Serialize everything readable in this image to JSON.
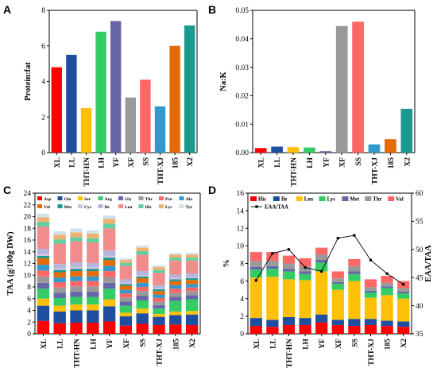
{
  "colors": {
    "A": [
      "#ff0000",
      "#1f4e9e",
      "#ffc107",
      "#33cc66",
      "#6666a8",
      "#999999",
      "#ff6666",
      "#3399cc",
      "#e36c09",
      "#1a9a8e"
    ],
    "B": [
      "#ff0000",
      "#1f4e9e",
      "#ffc107",
      "#33cc66",
      "#6666a8",
      "#999999",
      "#ff6666",
      "#3399cc",
      "#e36c09",
      "#1a9a8e"
    ],
    "amino": [
      "#ff0000",
      "#1f4e9e",
      "#ffc107",
      "#33cc66",
      "#6666a8",
      "#999999",
      "#ff6666",
      "#3399cc",
      "#e36c09",
      "#1a9a8e",
      "#d4c3e0",
      "#b4b4dc",
      "#f08c8c",
      "#5fcfa0",
      "#f0b070",
      "#cfe3ef"
    ],
    "D": [
      "#ff0000",
      "#1f4e9e",
      "#ffc107",
      "#33cc66",
      "#6666a8",
      "#999999",
      "#ff6666"
    ],
    "line": "#000000"
  },
  "chart_data": [
    {
      "panel": "A",
      "type": "bar",
      "categories": [
        "XL",
        "LL",
        "THT-HN",
        "LH",
        "YF",
        "XF",
        "SS",
        "THT-XJ",
        "185",
        "X2"
      ],
      "values": [
        4.8,
        5.5,
        2.5,
        6.8,
        7.4,
        3.1,
        4.1,
        2.6,
        6.0,
        7.15
      ],
      "ylabel": "Protein:fat",
      "ylim": [
        0,
        8
      ],
      "yticks": [
        "0",
        "2",
        "4",
        "6",
        "8"
      ]
    },
    {
      "panel": "B",
      "type": "bar",
      "categories": [
        "XL",
        "LL",
        "THT-HN",
        "LH",
        "YF",
        "XF",
        "SS",
        "THT-XJ",
        "185",
        "X2"
      ],
      "values": [
        0.0016,
        0.0021,
        0.0019,
        0.0018,
        0.0005,
        0.0445,
        0.046,
        0.0029,
        0.0047,
        0.0154
      ],
      "ylabel": "Na:K",
      "ylim": [
        0,
        0.05
      ],
      "yticks": [
        "0.00",
        "0.01",
        "0.02",
        "0.03",
        "0.04",
        "0.05"
      ]
    },
    {
      "panel": "C",
      "type": "stacked-bar",
      "categories": [
        "XL",
        "LL",
        "THT-HN",
        "LH",
        "YF",
        "XF",
        "SS",
        "THT-XJ",
        "185",
        "X2"
      ],
      "ylabel": "TAA (g/100g DW)",
      "ylim": [
        0,
        24
      ],
      "yticks": [
        "0",
        "2",
        "4",
        "6",
        "8",
        "10",
        "12",
        "14",
        "16",
        "18",
        "20",
        "22",
        "24"
      ],
      "series": [
        {
          "name": "Asp",
          "values": [
            2.2,
            1.8,
            1.9,
            1.9,
            2.1,
            1.4,
            1.7,
            1.5,
            1.6,
            1.5
          ]
        },
        {
          "name": "Glu",
          "values": [
            2.6,
            2.0,
            2.1,
            2.1,
            2.6,
            1.6,
            1.8,
            1.4,
            1.6,
            1.8
          ]
        },
        {
          "name": "Ser",
          "values": [
            1.2,
            1.0,
            1.0,
            1.0,
            1.2,
            0.6,
            0.8,
            0.5,
            0.6,
            0.6
          ]
        },
        {
          "name": "Arg",
          "values": [
            1.7,
            1.3,
            1.3,
            1.3,
            1.8,
            1.2,
            1.4,
            0.9,
            1.8,
            2.0
          ]
        },
        {
          "name": "Gly",
          "values": [
            1.0,
            0.9,
            0.9,
            0.9,
            1.0,
            0.7,
            0.8,
            0.6,
            0.7,
            0.7
          ]
        },
        {
          "name": "Thr",
          "values": [
            1.1,
            0.9,
            0.9,
            0.9,
            1.0,
            0.7,
            0.8,
            0.6,
            0.7,
            0.7
          ]
        },
        {
          "name": "Pro",
          "values": [
            1.0,
            0.9,
            0.9,
            0.9,
            1.0,
            0.7,
            0.7,
            0.6,
            0.7,
            0.6
          ]
        },
        {
          "name": "Ala",
          "values": [
            1.0,
            0.8,
            0.8,
            0.8,
            0.9,
            0.6,
            0.7,
            0.6,
            0.6,
            0.6
          ]
        },
        {
          "name": "Val",
          "values": [
            1.1,
            0.9,
            0.9,
            0.9,
            1.0,
            0.7,
            0.8,
            0.6,
            0.7,
            0.7
          ]
        },
        {
          "name": "Met",
          "values": [
            0.4,
            0.4,
            0.4,
            0.4,
            0.4,
            0.3,
            0.3,
            0.3,
            0.3,
            0.3
          ]
        },
        {
          "name": "Cys",
          "values": [
            0.3,
            0.3,
            0.3,
            0.3,
            0.3,
            0.2,
            0.2,
            0.2,
            0.2,
            0.2
          ]
        },
        {
          "name": "Ile",
          "values": [
            0.9,
            0.7,
            0.8,
            0.7,
            0.9,
            0.6,
            0.7,
            0.5,
            0.6,
            0.6
          ]
        },
        {
          "name": "Leu",
          "values": [
            3.8,
            3.5,
            3.6,
            3.5,
            3.8,
            2.3,
            2.8,
            2.1,
            2.4,
            2.2
          ]
        },
        {
          "name": "His",
          "values": [
            0.8,
            0.7,
            0.7,
            0.7,
            0.8,
            0.5,
            0.6,
            0.5,
            0.5,
            0.5
          ]
        },
        {
          "name": "Lys",
          "values": [
            0.8,
            0.8,
            0.8,
            0.8,
            0.8,
            0.5,
            0.6,
            0.5,
            0.5,
            0.5
          ]
        },
        {
          "name": "Tyr",
          "values": [
            0.6,
            0.6,
            0.7,
            0.6,
            0.6,
            0.3,
            0.4,
            0.3,
            0.3,
            0.3
          ]
        }
      ]
    },
    {
      "panel": "D",
      "type": "stacked-bar-with-line",
      "categories": [
        "XL",
        "LL",
        "THT-HN",
        "LH",
        "YF",
        "XF",
        "SS",
        "THT-XJ",
        "185",
        "X2"
      ],
      "ylabel": "%",
      "ylim": [
        0,
        16
      ],
      "yticks": [
        "0",
        "2",
        "4",
        "6",
        "8",
        "10",
        "12",
        "14",
        "16"
      ],
      "y2label": "EAA/TAA",
      "y2lim": [
        35,
        60
      ],
      "y2ticks": [
        "35",
        "40",
        "45",
        "50",
        "55",
        "60"
      ],
      "series": [
        {
          "name": "His",
          "values": [
            0.9,
            0.8,
            1.0,
            1.0,
            1.3,
            1.0,
            0.9,
            1.0,
            0.9,
            0.8
          ]
        },
        {
          "name": "Ile",
          "values": [
            0.9,
            0.8,
            0.9,
            0.8,
            0.9,
            0.6,
            0.8,
            0.7,
            0.6,
            0.6
          ]
        },
        {
          "name": "Leu",
          "values": [
            4.6,
            4.9,
            4.3,
            4.3,
            4.9,
            3.4,
            4.3,
            2.4,
            2.9,
            2.6
          ]
        },
        {
          "name": "Lys",
          "values": [
            0.9,
            0.9,
            0.9,
            0.7,
            1.0,
            0.7,
            0.8,
            0.6,
            0.8,
            0.6
          ]
        },
        {
          "name": "Met",
          "values": [
            0.3,
            0.3,
            0.3,
            0.3,
            0.3,
            0.2,
            0.3,
            0.2,
            0.2,
            0.2
          ]
        },
        {
          "name": "Thr",
          "values": [
            0.7,
            0.6,
            0.6,
            0.6,
            0.6,
            0.4,
            0.6,
            0.4,
            0.4,
            0.4
          ]
        },
        {
          "name": "Val",
          "values": [
            1.0,
            1.0,
            0.9,
            0.9,
            0.8,
            0.8,
            0.8,
            0.9,
            0.8,
            0.8
          ]
        }
      ],
      "line": {
        "name": "EAA/TAA",
        "values": [
          44.5,
          49.3,
          50.0,
          46.8,
          46.1,
          52.0,
          52.5,
          48.1,
          45.7,
          43.8
        ]
      }
    }
  ]
}
